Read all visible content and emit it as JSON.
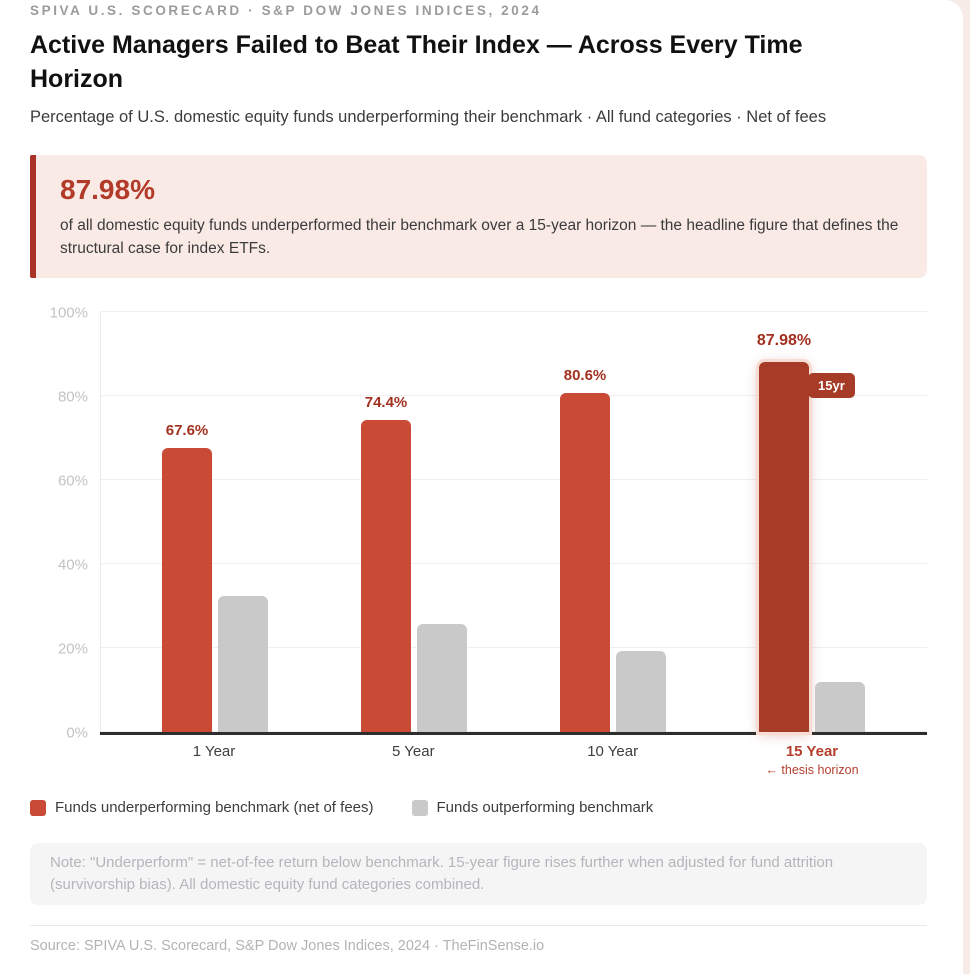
{
  "header": {
    "eyebrow": "SPIVA U.S. SCORECARD · S&P DOW JONES INDICES, 2024",
    "title": "Active Managers Failed to Beat Their Index — Across Every Time Horizon",
    "subtitle": "Percentage of U.S. domestic equity funds underperforming their benchmark · All fund categories · Net of fees"
  },
  "callout": {
    "stat": "87.98%",
    "text": "of all domestic equity funds underperformed their benchmark over a 15-year horizon — the headline figure that defines the structural case for index ETFs.",
    "background": "#faeae6",
    "border_color": "#a93326",
    "stat_color": "#b23a28"
  },
  "chart_data": {
    "type": "bar",
    "title": "Percentage of U.S. domestic equity funds underperforming their benchmark",
    "categories": [
      "1 Year",
      "5 Year",
      "10 Year",
      "15 Year"
    ],
    "series": [
      {
        "name": "Funds underperforming benchmark (net of fees)",
        "color": "#c94b36",
        "values": [
          67.6,
          74.4,
          80.6,
          87.98
        ],
        "labels": [
          "67.6%",
          "74.4%",
          "80.6%",
          "87.98%"
        ]
      },
      {
        "name": "Funds outperforming benchmark",
        "color": "#c9c9c9",
        "values": [
          32.4,
          25.6,
          19.4,
          12.02
        ]
      }
    ],
    "highlight": {
      "category_index": 3,
      "bar_color": "#a63b27",
      "badge": "15yr",
      "annotation": "← thesis horizon"
    },
    "xlabel": "",
    "ylabel": "",
    "ylim": [
      0,
      100
    ],
    "yticks": [
      0,
      20,
      40,
      60,
      80,
      100
    ],
    "ytick_labels": [
      "0%",
      "20%",
      "40%",
      "60%",
      "80%",
      "100%"
    ],
    "grid": true,
    "legend_position": "bottom"
  },
  "note": "Note: \"Underperform\" = net-of-fee return below benchmark. 15-year figure rises further when adjusted for fund attrition (survivorship bias). All domestic equity fund categories combined.",
  "source": "Source: SPIVA U.S. Scorecard, S&P Dow Jones Indices, 2024 · TheFinSense.io"
}
